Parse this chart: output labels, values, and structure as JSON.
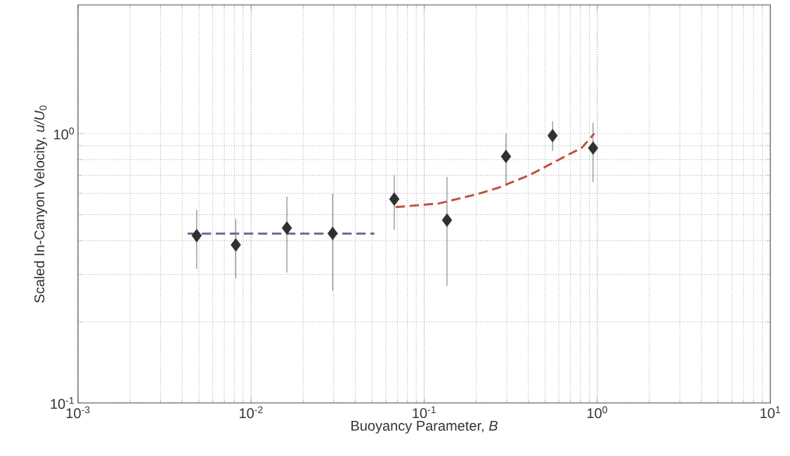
{
  "chart_data": {
    "type": "scatter",
    "xlabel": "Buoyancy Parameter,  *B*",
    "ylabel": "Scaled In-Canyon Velocity,  *u/U*$_{0}$",
    "log": "xy",
    "grid": true,
    "xlim": [
      0.001,
      10
    ],
    "ylim": [
      0.1,
      3
    ],
    "xticks": [
      {
        "value": 0.001,
        "label": "10$^{-3}$"
      },
      {
        "value": 0.01,
        "label": "10$^{-2}$"
      },
      {
        "value": 0.1,
        "label": "10$^{-1}$"
      },
      {
        "value": 1,
        "label": "10$^{0}$"
      },
      {
        "value": 10,
        "label": "10$^{1}$"
      }
    ],
    "yticks": [
      {
        "value": 0.1,
        "label": "10$^{-1}$"
      },
      {
        "value": 1,
        "label": "10$^{0}$"
      }
    ],
    "series": [
      {
        "marker": "diamond",
        "color": "#303030",
        "x": [
          0.00485,
          0.00816,
          0.0161,
          0.0296,
          0.0672,
          0.1355,
          0.297,
          0.552,
          0.946
        ],
        "values": [
          0.418,
          0.386,
          0.446,
          0.426,
          0.571,
          0.477,
          0.822,
          0.982,
          0.883
        ],
        "errors": [
          [
            0.315,
            0.52
          ],
          [
            0.29,
            0.482
          ],
          [
            0.305,
            0.583
          ],
          [
            0.261,
            0.597
          ],
          [
            0.44,
            0.7
          ],
          [
            0.272,
            0.69
          ],
          [
            0.653,
            1.0
          ],
          [
            0.861,
            1.11
          ],
          [
            0.661,
            1.097
          ]
        ]
      },
      {
        "type": "line",
        "line_style": "dashed",
        "color": "#6a6fa0",
        "x": [
          0.0043,
          0.0516
        ],
        "values": [
          0.425,
          0.425
        ]
      },
      {
        "type": "line",
        "line_style": "dashed",
        "color": "#c0503c",
        "x": [
          0.0684,
          0.1213,
          0.207,
          0.27,
          0.404,
          0.51,
          0.666,
          0.814,
          0.962
        ],
        "values": [
          0.533,
          0.55,
          0.598,
          0.63,
          0.7,
          0.757,
          0.828,
          0.885,
          1.0
        ]
      }
    ]
  }
}
